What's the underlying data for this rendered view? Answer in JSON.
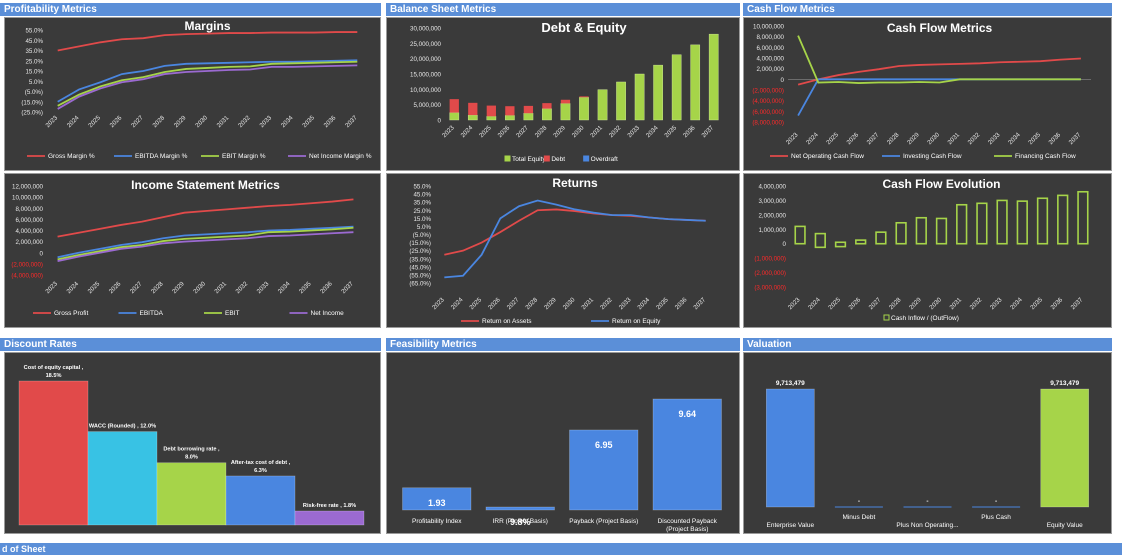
{
  "sections": {
    "profitability": "Profitability Metrics",
    "balance": "Balance Sheet Metrics",
    "cashflow": "Cash Flow Metrics",
    "discount": "Discount Rates",
    "feasibility": "Feasibility Metrics",
    "valuation": "Valuation"
  },
  "footer": "d of Sheet",
  "colors": {
    "grossRed": "#e14a4a",
    "ebitdaBlue": "#4a86e0",
    "ebitGreen": "#a6d449",
    "purple": "#9b6ad1",
    "chartBg": "#3a3a3a",
    "text": "#ffffff"
  },
  "chart_data": [
    {
      "id": "margins",
      "type": "line",
      "title": "Margins",
      "x": [
        "2023",
        "2024",
        "2025",
        "2026",
        "2027",
        "2028",
        "2029",
        "2030",
        "2031",
        "2032",
        "2033",
        "2034",
        "2035",
        "2036",
        "2037"
      ],
      "ylim": [
        -25,
        55
      ],
      "yticks": [
        55,
        45,
        35,
        25,
        15,
        5,
        -5,
        -15,
        -25
      ],
      "ytick_labels": [
        "55.0%",
        "45.0%",
        "35.0%",
        "25.0%",
        "15.0%",
        "5.0%",
        "(5.0%)",
        "(15.0%)",
        "(25.0%)"
      ],
      "series": [
        {
          "name": "Gross Margin %",
          "color": "#e14a4a",
          "values": [
            35,
            39,
            43,
            46,
            47,
            50,
            51,
            51.5,
            52,
            52,
            52.5,
            52.5,
            52.5,
            53,
            53
          ]
        },
        {
          "name": "EBITDA Margin %",
          "color": "#4a86e0",
          "values": [
            -15,
            -3,
            4,
            12,
            15,
            20,
            22,
            22.5,
            23,
            23.5,
            24,
            24,
            24.5,
            25,
            25.5
          ]
        },
        {
          "name": "EBIT Margin %",
          "color": "#a6d449",
          "values": [
            -19,
            -8,
            0,
            6,
            9,
            14,
            17,
            18,
            19,
            19.5,
            22,
            22.5,
            23,
            23.5,
            24
          ]
        },
        {
          "name": "Net Income Margin %",
          "color": "#9b6ad1",
          "values": [
            -22,
            -10,
            -2,
            4,
            7,
            12,
            14,
            15,
            16,
            16.5,
            19,
            19,
            19.5,
            20,
            20.5
          ]
        }
      ]
    },
    {
      "id": "debt_equity",
      "type": "bar",
      "title": "Debt & Equity",
      "x": [
        "2023",
        "2024",
        "2025",
        "2026",
        "2027",
        "2028",
        "2029",
        "2030",
        "2031",
        "2032",
        "2033",
        "2034",
        "2035",
        "2036",
        "2037"
      ],
      "ylim": [
        0,
        30000000
      ],
      "yticks": [
        30000000,
        25000000,
        20000000,
        15000000,
        10000000,
        5000000,
        0
      ],
      "ytick_labels": [
        "30,000,000",
        "25,000,000",
        "20,000,000",
        "15,000,000",
        "10,000,000",
        "5,000,000",
        "0"
      ],
      "series": [
        {
          "name": "Total Equity",
          "color": "#a6d449",
          "values": [
            2400000,
            1600000,
            1200000,
            1500000,
            2200000,
            3700000,
            5400000,
            7400000,
            9900000,
            12400000,
            15000000,
            17900000,
            21300000,
            24500000,
            28000000
          ]
        },
        {
          "name": "Debt",
          "color": "#e14a4a",
          "values": [
            4400000,
            4000000,
            3500000,
            3000000,
            2400000,
            1800000,
            1200000,
            300000,
            0,
            0,
            0,
            0,
            0,
            0,
            0
          ]
        },
        {
          "name": "Overdraft",
          "color": "#4a86e0",
          "values": [
            0,
            0,
            0,
            0,
            0,
            0,
            0,
            0,
            0,
            0,
            0,
            0,
            0,
            0,
            0
          ]
        }
      ]
    },
    {
      "id": "cash_flow",
      "type": "line",
      "title": "Cash Flow Metrics",
      "x": [
        "2023",
        "2024",
        "2025",
        "2026",
        "2027",
        "2028",
        "2029",
        "2030",
        "2031",
        "2032",
        "2033",
        "2034",
        "2035",
        "2036",
        "2037"
      ],
      "ylim": [
        -8000000,
        10000000
      ],
      "yticks": [
        10000000,
        8000000,
        6000000,
        4000000,
        2000000,
        0,
        -2000000,
        -4000000,
        -6000000,
        -8000000
      ],
      "ytick_labels": [
        "10,000,000",
        "8,000,000",
        "6,000,000",
        "4,000,000",
        "2,000,000",
        "0",
        "(2,000,000)",
        "(4,000,000)",
        "(6,000,000)",
        "(8,000,000)"
      ],
      "series": [
        {
          "name": "Net Operating Cash Flow",
          "color": "#e14a4a",
          "values": [
            -1000000,
            0,
            800000,
            1400000,
            1900000,
            2500000,
            2700000,
            2800000,
            2900000,
            3000000,
            3200000,
            3300000,
            3400000,
            3700000,
            3900000
          ]
        },
        {
          "name": "Investing Cash Flow",
          "color": "#4a86e0",
          "values": [
            -6800000,
            0,
            0,
            0,
            0,
            0,
            0,
            0,
            0,
            0,
            0,
            0,
            0,
            0,
            0
          ]
        },
        {
          "name": "Financing Cash Flow",
          "color": "#a6d449",
          "values": [
            8200000,
            -600000,
            -500000,
            -700000,
            -600000,
            -600000,
            -500000,
            -600000,
            0,
            0,
            0,
            0,
            0,
            0,
            0
          ]
        }
      ]
    },
    {
      "id": "income_statement",
      "type": "line",
      "title": "Income Statement Metrics",
      "x": [
        "2023",
        "2024",
        "2025",
        "2026",
        "2027",
        "2028",
        "2029",
        "2030",
        "2031",
        "2032",
        "2033",
        "2034",
        "2035",
        "2036",
        "2037"
      ],
      "ylim": [
        -4000000,
        12000000
      ],
      "yticks": [
        12000000,
        10000000,
        8000000,
        6000000,
        4000000,
        2000000,
        0,
        -2000000,
        -4000000
      ],
      "ytick_labels": [
        "12,000,000",
        "10,000,000",
        "8,000,000",
        "6,000,000",
        "4,000,000",
        "2,000,000",
        "0",
        "(2,000,000)",
        "(4,000,000)"
      ],
      "series": [
        {
          "name": "Gross Profit",
          "color": "#e14a4a",
          "values": [
            2900000,
            3600000,
            4300000,
            5000000,
            5600000,
            6400000,
            7200000,
            7500000,
            7800000,
            8100000,
            8400000,
            8600000,
            8900000,
            9200000,
            9600000
          ]
        },
        {
          "name": "EBITDA",
          "color": "#4a86e0",
          "values": [
            -800000,
            0,
            700000,
            1400000,
            1900000,
            2600000,
            3100000,
            3300000,
            3500000,
            3700000,
            4000000,
            4100000,
            4300000,
            4500000,
            4700000
          ]
        },
        {
          "name": "EBIT",
          "color": "#a6d449",
          "values": [
            -1200000,
            -400000,
            300000,
            1000000,
            1400000,
            2100000,
            2500000,
            2700000,
            2900000,
            3100000,
            3700000,
            3800000,
            4000000,
            4200000,
            4500000
          ]
        },
        {
          "name": "Net Income",
          "color": "#9b6ad1",
          "values": [
            -1500000,
            -700000,
            0,
            700000,
            1100000,
            1700000,
            2000000,
            2200000,
            2400000,
            2600000,
            3000000,
            3100000,
            3300000,
            3500000,
            3700000
          ]
        }
      ]
    },
    {
      "id": "returns",
      "type": "line",
      "title": "Returns",
      "x": [
        "2023",
        "2024",
        "2025",
        "2026",
        "2027",
        "2028",
        "2029",
        "2030",
        "2031",
        "2032",
        "2033",
        "2034",
        "2035",
        "2036",
        "2037"
      ],
      "ylim": [
        -65,
        55
      ],
      "yticks": [
        55,
        45,
        35,
        25,
        15,
        5,
        -5,
        -15,
        -25,
        -35,
        -45,
        -55,
        -65
      ],
      "ytick_labels": [
        "55.0%",
        "45.0%",
        "35.0%",
        "25.0%",
        "15.0%",
        "5.0%",
        "(5.0%)",
        "(15.0%)",
        "(25.0%)",
        "(35.0%)",
        "(45.0%)",
        "(55.0%)",
        "(65.0%)"
      ],
      "series": [
        {
          "name": "Return on Assets",
          "color": "#e14a4a",
          "values": [
            -30,
            -25,
            -15,
            -2,
            12,
            25,
            26,
            24,
            21,
            19,
            18,
            16,
            14,
            13,
            12
          ]
        },
        {
          "name": "Return on Equity",
          "color": "#4a86e0",
          "values": [
            -58,
            -56,
            -30,
            15,
            30,
            37,
            32,
            26,
            22,
            19,
            19,
            16,
            14,
            13,
            12
          ]
        }
      ]
    },
    {
      "id": "cash_flow_evolution",
      "type": "bar",
      "title": "Cash Flow Evolution",
      "x": [
        "2023",
        "2024",
        "2025",
        "2026",
        "2027",
        "2028",
        "2029",
        "2030",
        "2031",
        "2032",
        "2033",
        "2034",
        "2035",
        "2036",
        "2037"
      ],
      "ylim": [
        -3000000,
        4000000
      ],
      "yticks": [
        4000000,
        3000000,
        2000000,
        1000000,
        0,
        -1000000,
        -2000000,
        -3000000
      ],
      "ytick_labels": [
        "4,000,000",
        "3,000,000",
        "2,000,000",
        "1,000,000",
        "0",
        "(1,000,000)",
        "(2,000,000)",
        "(3,000,000)"
      ],
      "series": [
        {
          "name": "Cash Inflow / (OutFlow)",
          "color": "#a6d449",
          "values": [
            [
              0,
              1200000
            ],
            [
              -250000,
              700000
            ],
            [
              -200000,
              100000
            ],
            [
              0,
              250000
            ],
            [
              0,
              800000
            ],
            [
              0,
              1450000
            ],
            [
              0,
              1800000
            ],
            [
              0,
              1750000
            ],
            [
              0,
              2700000
            ],
            [
              0,
              2800000
            ],
            [
              0,
              3000000
            ],
            [
              0,
              2950000
            ],
            [
              0,
              3150000
            ],
            [
              0,
              3350000
            ],
            [
              0,
              3600000
            ]
          ]
        }
      ]
    },
    {
      "id": "discount_rates",
      "type": "bar",
      "categories": [
        "Cost of equity capital",
        "WACC (Rounded)",
        "Debt borrowing rate",
        "After-tax cost of debt",
        "Risk-free rate"
      ],
      "values": [
        18.5,
        12.0,
        8.0,
        6.3,
        1.8
      ],
      "value_labels": [
        "Cost of equity capital ,\n18.5%",
        "WACC (Rounded) , 12.0%",
        "Debt borrowing rate ,\n8.0%",
        "After-tax cost of debt ,\n6.3%",
        "Risk-free rate , 1.8%"
      ],
      "colors": [
        "#e14a4a",
        "#38c2e4",
        "#a6d449",
        "#4a86e0",
        "#9b6ad1"
      ],
      "ylim": [
        0,
        18.5
      ]
    },
    {
      "id": "feasibility",
      "type": "bar",
      "categories": [
        "Profitability Index",
        "IRR (Project Basis)",
        "Payback  (Project Basis)",
        "Discounted Payback (Project Basis)"
      ],
      "category_lines": [
        [
          "Profitability Index"
        ],
        [
          "IRR (Project Basis)"
        ],
        [
          "Payback  (Project Basis)"
        ],
        [
          "Discounted Payback",
          "(Project Basis)"
        ]
      ],
      "values": [
        1.93,
        0.098,
        6.95,
        9.64
      ],
      "value_labels": [
        "1.93",
        "9.8%",
        "6.95",
        "9.64"
      ],
      "color": "#4a86e0",
      "ylim": [
        0,
        9.64
      ]
    },
    {
      "id": "valuation",
      "type": "bar",
      "categories": [
        "Enterprise Value",
        "Minus Debt",
        "Plus Non Operating...",
        "Plus Cash",
        "Equity Value"
      ],
      "values": [
        9713479,
        0,
        0,
        0,
        9713479
      ],
      "value_labels": [
        "9,713,479",
        "-",
        "-",
        "-",
        "9,713,479"
      ],
      "colors": [
        "#4a86e0",
        "#4a86e0",
        "#4a86e0",
        "#4a86e0",
        "#a6d449"
      ],
      "ylim": [
        0,
        9713479
      ]
    }
  ]
}
